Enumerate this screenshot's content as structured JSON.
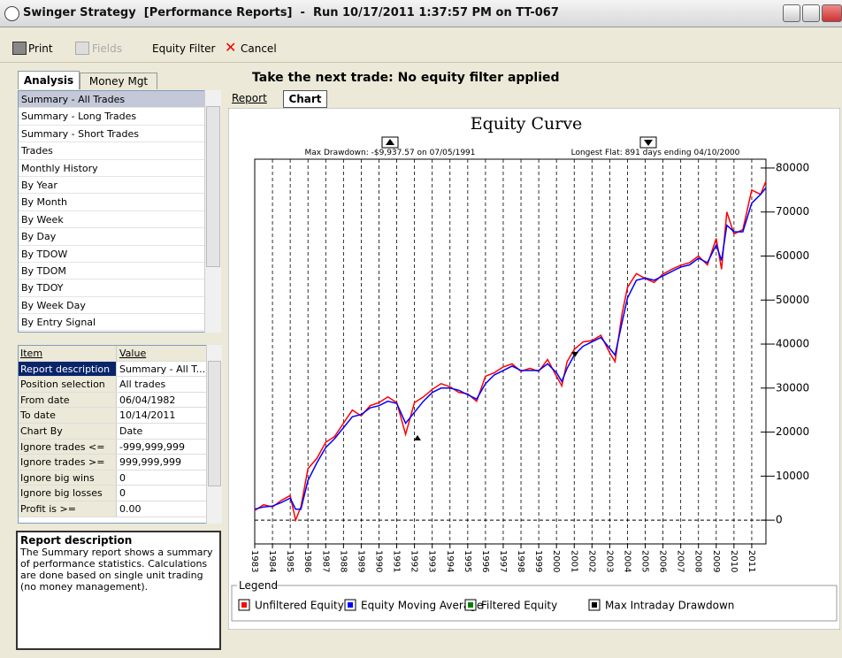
{
  "window": {
    "title": "Swinger Strategy  [Performance Reports]  -  Run 10/17/2011 1:37:57 PM on TT-067"
  },
  "toolbar": [
    "Print",
    "Fields",
    "Equity Filter",
    "Cancel"
  ],
  "left_tabs": [
    "Analysis",
    "Money Mgt"
  ],
  "report_list": [
    "Summary - All Trades",
    "Summary - Long Trades",
    "Summary - Short Trades",
    "Trades",
    "Monthly History",
    "By Year",
    "By Month",
    "By Week",
    "By Day",
    "By TDOW",
    "By TDOM",
    "By TDOY",
    "By Week Day",
    "By Entry Signal"
  ],
  "properties": {
    "header": [
      "Item",
      "Value"
    ],
    "rows": [
      [
        "Report description",
        "Summary - All T..."
      ],
      [
        "Position selection",
        "All trades"
      ],
      [
        "From date",
        "06/04/1982"
      ],
      [
        "To date",
        "10/14/2011"
      ],
      [
        "Chart By",
        "Date"
      ],
      [
        "Ignore trades <=",
        "-999,999,999"
      ],
      [
        "Ignore trades >=",
        "999,999,999"
      ],
      [
        "Ignore big wins",
        "0"
      ],
      [
        "Ignore big losses",
        "0"
      ],
      [
        "Profit is >=",
        "0.00"
      ]
    ]
  },
  "description": {
    "title": "Report description",
    "text": "The Summary report shows a summary of performance statistics.  Calculations are done based on single unit trading (no money management)."
  },
  "heading": "Take the next trade: No equity filter applied",
  "right_tabs": [
    "Report",
    "Chart"
  ],
  "chart_data": {
    "type": "line",
    "title": "Equity Curve",
    "annotations": [
      "Max Drawdown: -$9,937.57 on 07/05/1991",
      "Longest Flat: 891 days ending 04/10/2000"
    ],
    "legend_title": "Legend",
    "x": [
      1983,
      1983.5,
      1984,
      1984.5,
      1985,
      1985.3,
      1985.6,
      1986,
      1986.5,
      1987,
      1987.5,
      1988,
      1988.5,
      1989,
      1989.5,
      1990,
      1990.5,
      1991,
      1991.5,
      1992,
      1992.5,
      1993,
      1993.5,
      1994,
      1994.5,
      1995,
      1995.5,
      1996,
      1996.5,
      1997,
      1997.5,
      1998,
      1998.5,
      1999,
      1999.5,
      2000,
      2000.3,
      2000.6,
      2001,
      2001.5,
      2002,
      2002.5,
      2003,
      2003.3,
      2003.7,
      2004,
      2004.5,
      2005,
      2005.5,
      2006,
      2006.5,
      2007,
      2007.5,
      2008,
      2008.5,
      2009,
      2009.3,
      2009.6,
      2010,
      2010.5,
      2011,
      2011.5,
      2011.8
    ],
    "series": [
      {
        "name": "Unfiltered Equity",
        "color": "#ff0000",
        "values": [
          2200,
          3500,
          3000,
          4500,
          5600,
          0,
          3000,
          11700,
          14000,
          17700,
          19000,
          22000,
          25000,
          23700,
          26000,
          26700,
          28000,
          26700,
          19500,
          26700,
          28000,
          29700,
          31000,
          30300,
          29000,
          28700,
          27000,
          32700,
          33500,
          34800,
          35500,
          33800,
          34500,
          33800,
          36500,
          32700,
          30500,
          36000,
          38800,
          40500,
          40800,
          42000,
          38000,
          36000,
          47000,
          52900,
          56000,
          54900,
          54000,
          55900,
          57000,
          57900,
          58500,
          60000,
          58000,
          64000,
          57000,
          70000,
          65000,
          66000,
          75000,
          74000,
          77000
        ]
      },
      {
        "name": "Equity Moving Average",
        "color": "#0000ff",
        "values": [
          2500,
          3000,
          3200,
          4000,
          5000,
          2500,
          2500,
          9000,
          13000,
          16500,
          18500,
          21000,
          23500,
          24000,
          25500,
          26000,
          27000,
          26500,
          22000,
          24500,
          27000,
          29000,
          30000,
          30000,
          29500,
          28500,
          27500,
          31000,
          33000,
          34000,
          35000,
          34000,
          34000,
          34000,
          35500,
          33500,
          31500,
          34500,
          37500,
          39500,
          40500,
          41500,
          39000,
          37500,
          45000,
          50500,
          54500,
          55000,
          54500,
          55500,
          56500,
          57500,
          58000,
          59500,
          58500,
          62500,
          59000,
          67000,
          65500,
          65500,
          72000,
          74000,
          75500
        ]
      },
      {
        "name": "Filtered Equity",
        "color": "#008000"
      },
      {
        "name": "Max Intraday Drawdown",
        "color": "#000000"
      }
    ],
    "xlim": [
      1983,
      2011.8
    ],
    "xticks": [
      1983,
      1984,
      1985,
      1986,
      1987,
      1988,
      1989,
      1990,
      1991,
      1992,
      1993,
      1994,
      1995,
      1996,
      1997,
      1998,
      1999,
      2000,
      2001,
      2002,
      2003,
      2004,
      2005,
      2006,
      2007,
      2008,
      2009,
      2010,
      2011
    ],
    "ylim": [
      -5400,
      82000
    ],
    "yticks": [
      0,
      10000,
      20000,
      30000,
      40000,
      50000,
      60000,
      70000,
      80000
    ],
    "grid": true
  }
}
